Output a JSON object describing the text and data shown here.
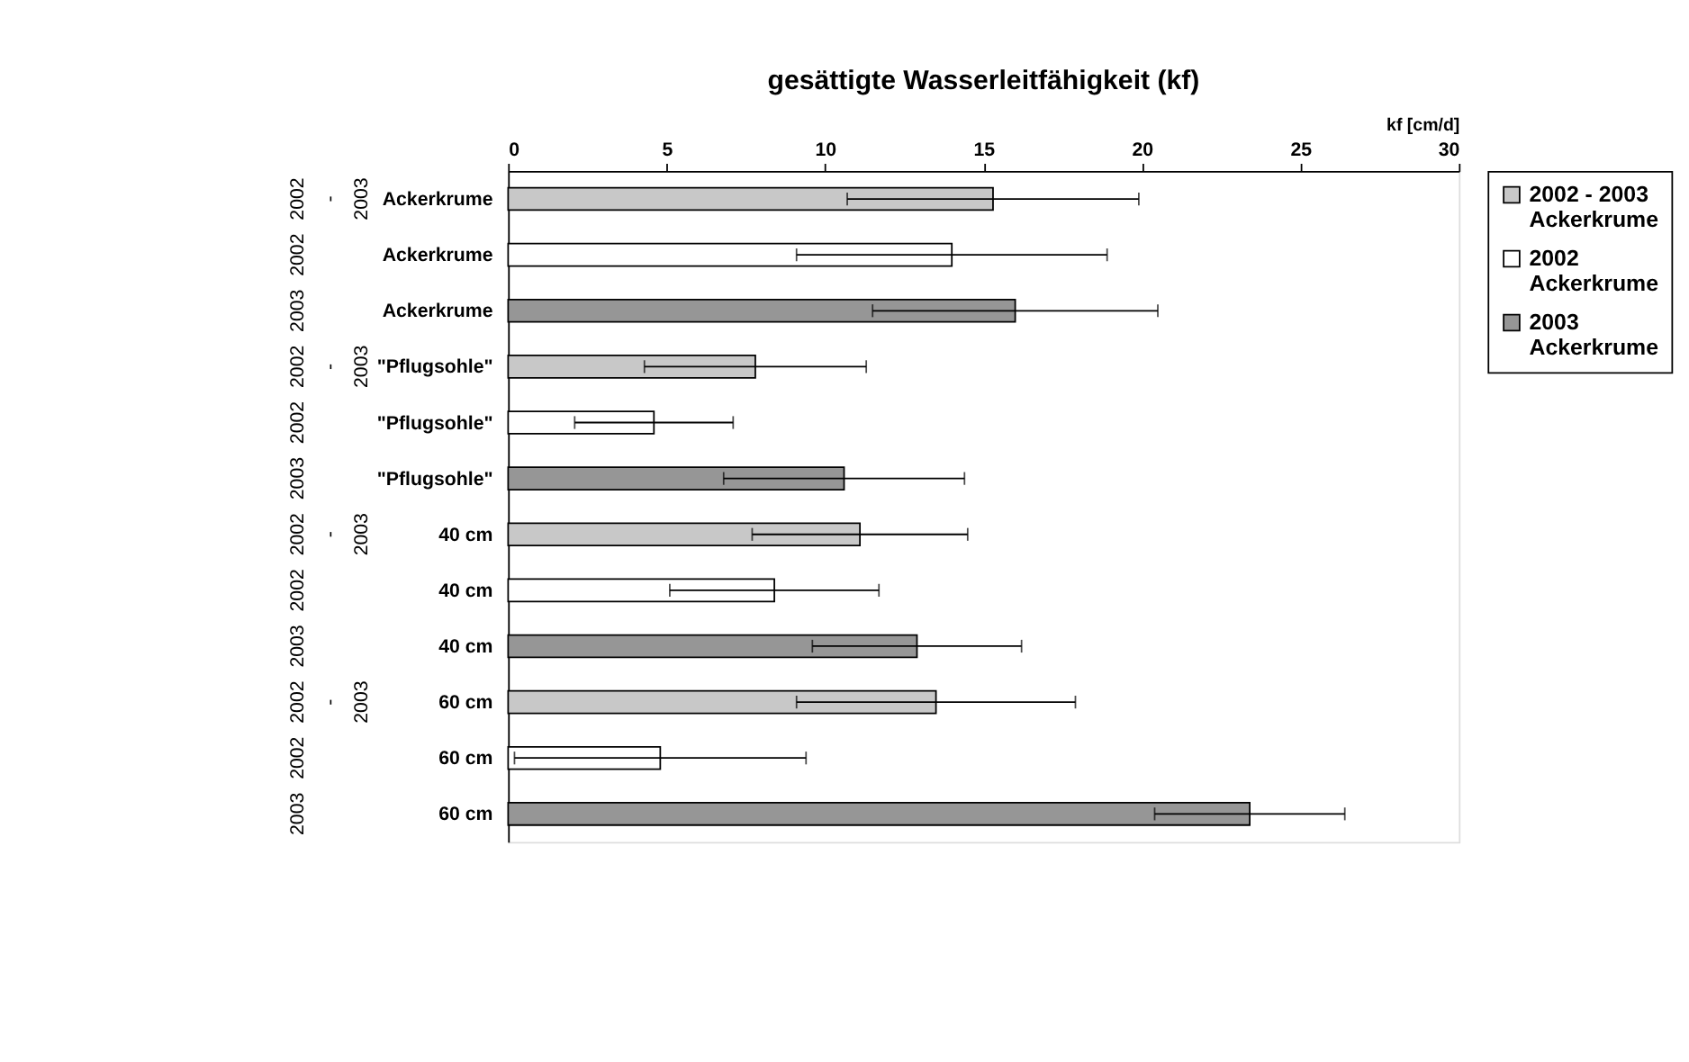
{
  "chart_data": {
    "type": "bar",
    "orientation": "horizontal",
    "title": "gesättigte Wasserleitfähigkeit (kf)",
    "xlabel": "kf [cm/d]",
    "categories": [
      "Ackerkrume",
      "Ackerkrume",
      "Ackerkrume",
      "\"Pflugsohle\"",
      "\"Pflugsohle\"",
      "\"Pflugsohle\"",
      "40 cm",
      "40 cm",
      "40 cm",
      "60 cm",
      "60 cm",
      "60 cm"
    ],
    "annotations": [
      "2002 - 2003",
      "2002",
      "2003",
      "2002 - 2003",
      "2002",
      "2003",
      "2002 - 2003",
      "2002",
      "2003",
      "2002 - 2003",
      "2002",
      "2003"
    ],
    "series": [
      {
        "name": "2002 - 2003 Ackerkrume",
        "color": "#c8c8c8",
        "values": [
          15.3,
          null,
          null,
          7.8,
          null,
          null,
          11.1,
          null,
          null,
          13.5,
          null,
          null
        ],
        "errors": [
          4.6,
          null,
          null,
          3.5,
          null,
          null,
          3.4,
          null,
          null,
          4.4,
          null,
          null
        ]
      },
      {
        "name": "2002 Ackerkrume",
        "color": "#ffffff",
        "values": [
          null,
          14.0,
          null,
          null,
          4.6,
          null,
          null,
          8.4,
          null,
          null,
          4.8,
          null
        ],
        "errors": [
          null,
          4.9,
          null,
          null,
          2.5,
          null,
          null,
          3.3,
          null,
          null,
          4.6,
          null
        ]
      },
      {
        "name": "2003 Ackerkrume",
        "color": "#969696",
        "values": [
          null,
          null,
          16.0,
          null,
          null,
          10.6,
          null,
          null,
          12.9,
          null,
          null,
          23.4
        ],
        "errors": [
          null,
          null,
          4.5,
          null,
          null,
          3.8,
          null,
          null,
          3.3,
          null,
          null,
          3.0
        ]
      }
    ],
    "xlim": [
      0,
      30
    ],
    "xticks": [
      0,
      5,
      10,
      15,
      20,
      25,
      30
    ],
    "grid": false,
    "legend": "right"
  }
}
